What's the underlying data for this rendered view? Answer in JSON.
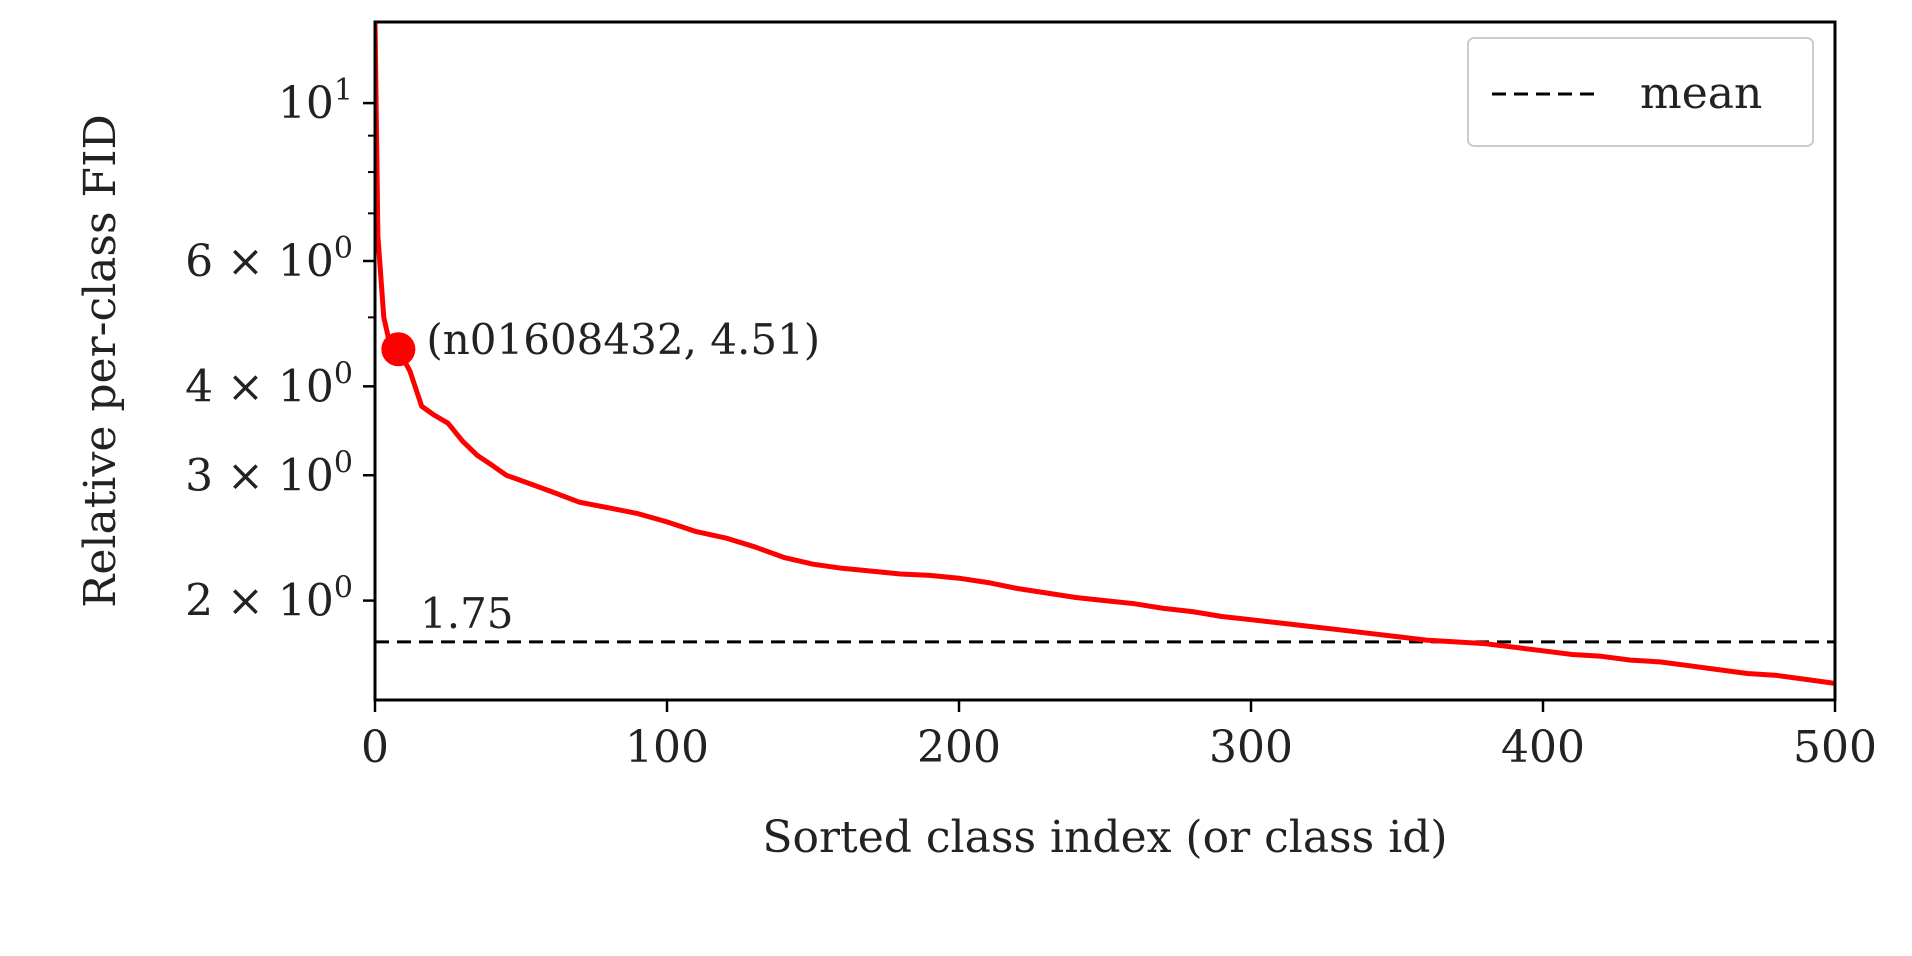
{
  "chart_data": {
    "type": "line",
    "xlabel": "Sorted class index (or class id)",
    "ylabel": "Relative per-class FID",
    "xlim": [
      0,
      500
    ],
    "ylim": [
      1.45,
      13.0
    ],
    "yscale": "log",
    "grid": false,
    "legend_position": "top-right",
    "x_ticks": [
      {
        "value": 0,
        "label": "0"
      },
      {
        "value": 100,
        "label": "100"
      },
      {
        "value": 200,
        "label": "200"
      },
      {
        "value": 300,
        "label": "300"
      },
      {
        "value": 400,
        "label": "400"
      },
      {
        "value": 500,
        "label": "500"
      }
    ],
    "y_ticks": [
      {
        "value": 10,
        "base": "10",
        "exp": "1"
      },
      {
        "value": 6,
        "base": "6 × 10",
        "exp": "0"
      },
      {
        "value": 4,
        "base": "4 × 10",
        "exp": "0"
      },
      {
        "value": 3,
        "base": "3 × 10",
        "exp": "0"
      },
      {
        "value": 2,
        "base": "2 × 10",
        "exp": "0"
      }
    ],
    "y_minor_ticks": [
      5,
      7,
      8,
      9
    ],
    "series": [
      {
        "color": "#ff0000",
        "x": [
          0,
          1,
          3,
          5,
          8,
          12,
          16,
          20,
          25,
          30,
          35,
          40,
          45,
          50,
          60,
          70,
          80,
          90,
          100,
          110,
          120,
          130,
          140,
          150,
          160,
          170,
          180,
          190,
          200,
          210,
          220,
          230,
          240,
          250,
          260,
          270,
          280,
          290,
          300,
          310,
          320,
          330,
          340,
          350,
          360,
          370,
          380,
          390,
          400,
          410,
          420,
          430,
          440,
          450,
          460,
          470,
          480,
          490,
          500
        ],
        "y": [
          13.0,
          6.5,
          5.0,
          4.6,
          4.51,
          4.2,
          3.75,
          3.65,
          3.55,
          3.35,
          3.2,
          3.1,
          3.0,
          2.95,
          2.85,
          2.75,
          2.7,
          2.65,
          2.58,
          2.5,
          2.45,
          2.38,
          2.3,
          2.25,
          2.22,
          2.2,
          2.18,
          2.17,
          2.15,
          2.12,
          2.08,
          2.05,
          2.02,
          2.0,
          1.98,
          1.95,
          1.93,
          1.9,
          1.88,
          1.86,
          1.84,
          1.82,
          1.8,
          1.78,
          1.76,
          1.75,
          1.74,
          1.72,
          1.7,
          1.68,
          1.67,
          1.65,
          1.64,
          1.62,
          1.6,
          1.58,
          1.57,
          1.55,
          1.53
        ]
      }
    ],
    "mean_line": {
      "value": 1.75,
      "label": "1.75",
      "color": "#000000",
      "legend": "mean"
    },
    "highlight": {
      "x": 8,
      "y": 4.51,
      "label": "(n01608432, 4.51)",
      "color": "#ff0000"
    }
  }
}
